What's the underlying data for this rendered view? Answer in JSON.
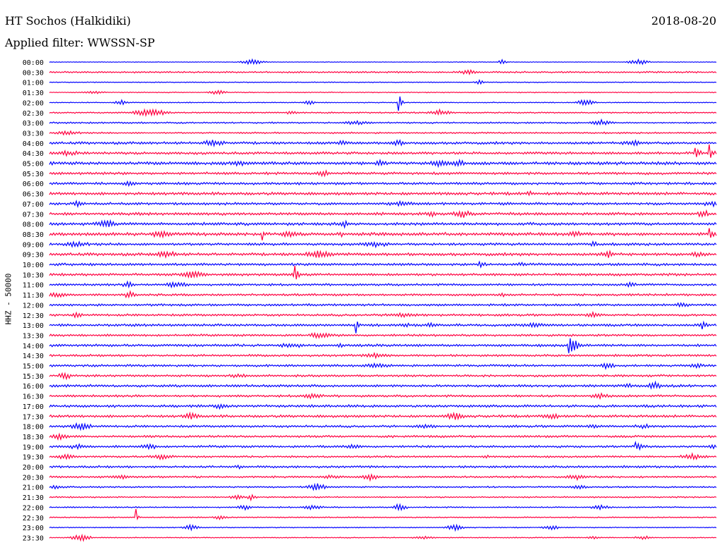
{
  "header": {
    "station": "HT Sochos (Halkidiki)",
    "date": "2018-08-20",
    "filter": "Applied filter: WWSSN-SP"
  },
  "chart_data": {
    "type": "line",
    "ylabel": "HHZ - 50000",
    "trace_labels": [
      "00:00",
      "00:30",
      "01:00",
      "01:30",
      "02:00",
      "02:30",
      "03:00",
      "03:30",
      "04:00",
      "04:30",
      "05:00",
      "05:30",
      "06:00",
      "06:30",
      "07:00",
      "07:30",
      "08:00",
      "08:30",
      "09:00",
      "09:30",
      "10:00",
      "10:30",
      "11:00",
      "11:30",
      "12:00",
      "12:30",
      "13:00",
      "13:30",
      "14:00",
      "14:30",
      "15:00",
      "15:30",
      "16:00",
      "16:30",
      "17:00",
      "17:30",
      "18:00",
      "18:30",
      "19:00",
      "19:30",
      "20:00",
      "20:30",
      "21:00",
      "21:30",
      "22:00",
      "22:30",
      "23:00",
      "23:30"
    ],
    "colors": [
      "#0000ff",
      "#ff0040"
    ],
    "noise_levels": [
      0.4,
      1.0,
      0.5,
      0.6,
      0.6,
      0.9,
      1.0,
      1.0,
      1.6,
      1.6,
      2.0,
      1.6,
      1.6,
      1.8,
      1.6,
      1.8,
      1.8,
      2.0,
      1.6,
      1.8,
      1.6,
      1.6,
      1.4,
      1.4,
      1.4,
      1.4,
      1.6,
      1.4,
      1.6,
      1.4,
      1.4,
      1.4,
      1.6,
      1.4,
      1.6,
      1.6,
      1.4,
      1.4,
      1.4,
      1.2,
      1.4,
      1.2,
      1.0,
      0.9,
      0.8,
      0.7,
      0.6,
      0.6
    ],
    "events": [
      {
        "trace": 4.5,
        "x": 0.525,
        "amp": 16,
        "dur": 0.008
      },
      {
        "trace": 9,
        "x": 0.99,
        "amp": 12,
        "dur": 0.01
      },
      {
        "trace": 9.5,
        "x": 0.97,
        "amp": 12,
        "dur": 0.01
      },
      {
        "trace": 17,
        "x": 0.32,
        "amp": 8,
        "dur": 0.006
      },
      {
        "trace": 17.5,
        "x": 0.99,
        "amp": 12,
        "dur": 0.012
      },
      {
        "trace": 26,
        "x": 0.46,
        "amp": 12,
        "dur": 0.008
      },
      {
        "trace": 28,
        "x": 0.78,
        "amp": 10,
        "dur": 0.015
      },
      {
        "trace": 45,
        "x": 0.13,
        "amp": 12,
        "dur": 0.006
      },
      {
        "trace": 21,
        "x": 0.37,
        "amp": 10,
        "dur": 0.006
      },
      {
        "trace": 38,
        "x": 0.88,
        "amp": 6,
        "dur": 0.02
      }
    ],
    "xlim": [
      0,
      30
    ],
    "x_unit": "minutes"
  }
}
